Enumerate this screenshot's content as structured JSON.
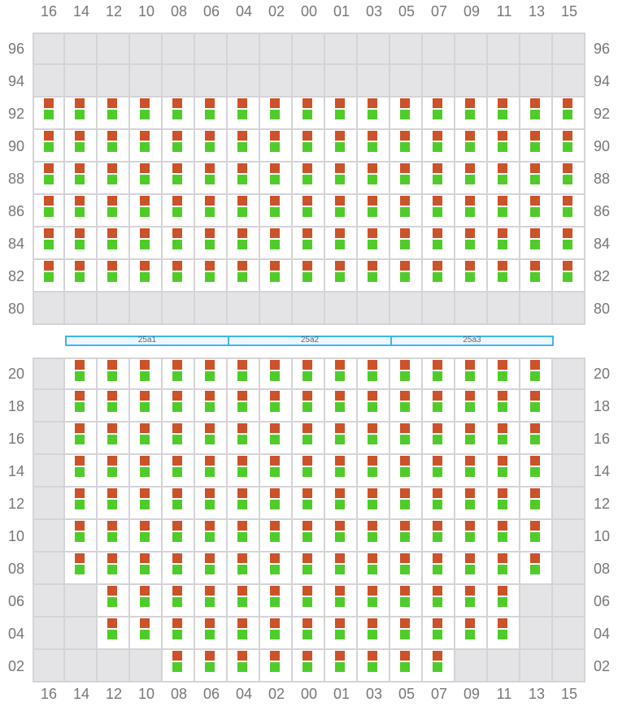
{
  "columns": [
    "16",
    "14",
    "12",
    "10",
    "08",
    "06",
    "04",
    "02",
    "00",
    "01",
    "03",
    "05",
    "07",
    "09",
    "11",
    "13",
    "15"
  ],
  "colors": {
    "top_marker": "#cc5229",
    "bottom_marker": "#4fcc29",
    "inactive": "#e4e4e6"
  },
  "top_section": {
    "rows": [
      {
        "label": "96",
        "active": null
      },
      {
        "label": "94",
        "active": null
      },
      {
        "label": "92",
        "active": [
          "16",
          "15"
        ]
      },
      {
        "label": "90",
        "active": [
          "16",
          "15"
        ]
      },
      {
        "label": "88",
        "active": [
          "16",
          "15"
        ]
      },
      {
        "label": "86",
        "active": [
          "16",
          "15"
        ]
      },
      {
        "label": "84",
        "active": [
          "16",
          "15"
        ]
      },
      {
        "label": "82",
        "active": [
          "16",
          "15"
        ]
      },
      {
        "label": "80",
        "active": null
      }
    ]
  },
  "zones": [
    "25a1",
    "25a2",
    "25a3"
  ],
  "bottom_section": {
    "rows": [
      {
        "label": "20",
        "active": [
          "14",
          "13"
        ]
      },
      {
        "label": "18",
        "active": [
          "14",
          "13"
        ]
      },
      {
        "label": "16",
        "active": [
          "14",
          "13"
        ]
      },
      {
        "label": "14",
        "active": [
          "14",
          "13"
        ]
      },
      {
        "label": "12",
        "active": [
          "14",
          "13"
        ]
      },
      {
        "label": "10",
        "active": [
          "14",
          "13"
        ]
      },
      {
        "label": "08",
        "active": [
          "14",
          "13"
        ]
      },
      {
        "label": "06",
        "active": [
          "12",
          "11"
        ]
      },
      {
        "label": "04",
        "active": [
          "12",
          "11"
        ]
      },
      {
        "label": "02",
        "active": [
          "08",
          "07"
        ]
      }
    ]
  }
}
